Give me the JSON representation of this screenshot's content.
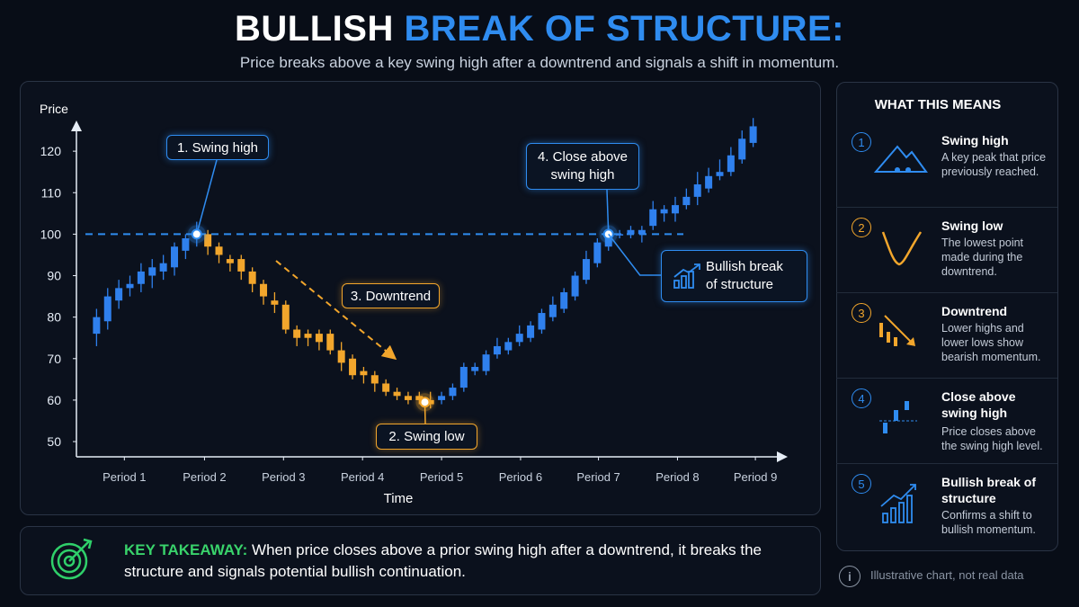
{
  "title_parts": [
    "BULLISH",
    "BREAK OF STRUCTURE:"
  ],
  "subtitle": "Price breaks above a key swing high after a downtrend and signals a shift in momentum.",
  "chart_data": {
    "type": "candlestick",
    "xlabel": "Time",
    "ylabel": "Price",
    "x": [
      1,
      2,
      3,
      4,
      5,
      6,
      7,
      8,
      9,
      10,
      11,
      12,
      13,
      14,
      15,
      16,
      17,
      18,
      19,
      20,
      21,
      22,
      23,
      24,
      25,
      26,
      27,
      28,
      29,
      30,
      31,
      32,
      33,
      34,
      35,
      36,
      37,
      38,
      39,
      40,
      41,
      42,
      43,
      44,
      45,
      46,
      47,
      48,
      49,
      50,
      51,
      52,
      53,
      54,
      55,
      56,
      57,
      58,
      59,
      60
    ],
    "open": [
      76,
      79,
      84,
      87,
      88,
      90,
      91,
      92,
      96,
      99,
      100,
      97,
      94,
      94,
      91,
      88,
      84,
      83,
      77,
      76,
      76,
      76,
      72,
      70,
      67,
      66,
      64,
      62,
      61,
      61,
      60,
      60,
      61,
      63,
      67,
      67,
      71,
      72,
      74,
      75,
      77,
      80,
      82,
      85,
      89,
      93,
      97,
      100,
      100,
      100,
      102,
      105,
      105,
      107,
      109,
      111,
      114,
      115,
      118,
      122
    ],
    "high": [
      82,
      87,
      89,
      90,
      93,
      94,
      95,
      98,
      100,
      103,
      101,
      98,
      95,
      95,
      92,
      89,
      86,
      84,
      78,
      77,
      77,
      77,
      74,
      71,
      68,
      67,
      65,
      63,
      62,
      62,
      62,
      62,
      64,
      69,
      69,
      72,
      75,
      75,
      78,
      79,
      82,
      85,
      87,
      91,
      96,
      99,
      102,
      101,
      102,
      102,
      108,
      107,
      109,
      111,
      115,
      116,
      118,
      121,
      125,
      128
    ],
    "low": [
      73,
      77,
      82,
      85,
      86,
      87,
      89,
      90,
      94,
      97,
      95,
      93,
      91,
      89,
      86,
      83,
      81,
      76,
      73,
      73,
      72,
      71,
      67,
      65,
      64,
      62,
      61,
      60,
      59,
      59,
      58,
      59,
      60,
      62,
      66,
      66,
      70,
      71,
      73,
      74,
      76,
      79,
      81,
      84,
      88,
      92,
      96,
      99,
      99,
      98,
      101,
      103,
      103,
      106,
      107,
      110,
      113,
      114,
      117,
      121
    ],
    "close": [
      80,
      85,
      87,
      88,
      91,
      92,
      93,
      97,
      99,
      101,
      97,
      95,
      93,
      91,
      88,
      85,
      83,
      77,
      75,
      75,
      74,
      72,
      69,
      66,
      66,
      64,
      62,
      61,
      60,
      60,
      59,
      61,
      63,
      68,
      68,
      71,
      73,
      74,
      76,
      78,
      81,
      83,
      86,
      90,
      94,
      98,
      100,
      100,
      101,
      101,
      106,
      106,
      107,
      109,
      112,
      114,
      115,
      119,
      123,
      126
    ],
    "up_color": "#2f80ed",
    "down_color": "#f2a62c",
    "xlim": [
      0,
      61
    ],
    "xticks": [
      {
        "value": 3.5,
        "label": "Period 1"
      },
      {
        "value": 10.7,
        "label": "Period 2"
      },
      {
        "value": 17.8,
        "label": "Period 3"
      },
      {
        "value": 24.9,
        "label": "Period 4"
      },
      {
        "value": 32,
        "label": "Period 5"
      },
      {
        "value": 39.1,
        "label": "Period 6"
      },
      {
        "value": 46.1,
        "label": "Period 7"
      },
      {
        "value": 53.2,
        "label": "Period 8"
      },
      {
        "value": 60.2,
        "label": "Period 9"
      }
    ],
    "ylim": [
      46,
      130
    ],
    "yticks": [
      50,
      60,
      70,
      80,
      90,
      100,
      110,
      120
    ],
    "swing_high_level": 100,
    "swing_low_level": 59.5,
    "annotations": [
      {
        "text": "1. Swing high",
        "x": 10,
        "y": 100
      },
      {
        "text": "2. Swing low",
        "x": 30.5,
        "y": 59.5
      },
      {
        "text": "3. Downtrend"
      },
      {
        "text": "4. Close above swing high",
        "x": 47,
        "y": 100
      },
      {
        "text": "Bullish break of structure"
      }
    ]
  },
  "sidebar": {
    "title": "WHAT THIS MEANS",
    "items": [
      {
        "number": "1",
        "title": "Swing high",
        "text": "A key peak that price previously reached."
      },
      {
        "number": "2",
        "title": "Swing low",
        "text": "The lowest point made during the downtrend."
      },
      {
        "number": "3",
        "title": "Downtrend",
        "text": "Lower highs and lower lows show bearish momentum."
      },
      {
        "number": "4",
        "title": "Close above swing high",
        "text": "Price closes above the swing high level."
      },
      {
        "number": "5",
        "title": "Bullish break of structure",
        "text": "Confirms a shift to bullish momentum."
      }
    ]
  },
  "takeaway": {
    "label": "KEY TAKEAWAY:",
    "text": "When price closes above a prior swing high after a downtrend, it breaks the structure and signals potential bullish continuation."
  },
  "note": "Illustrative chart, not real data"
}
